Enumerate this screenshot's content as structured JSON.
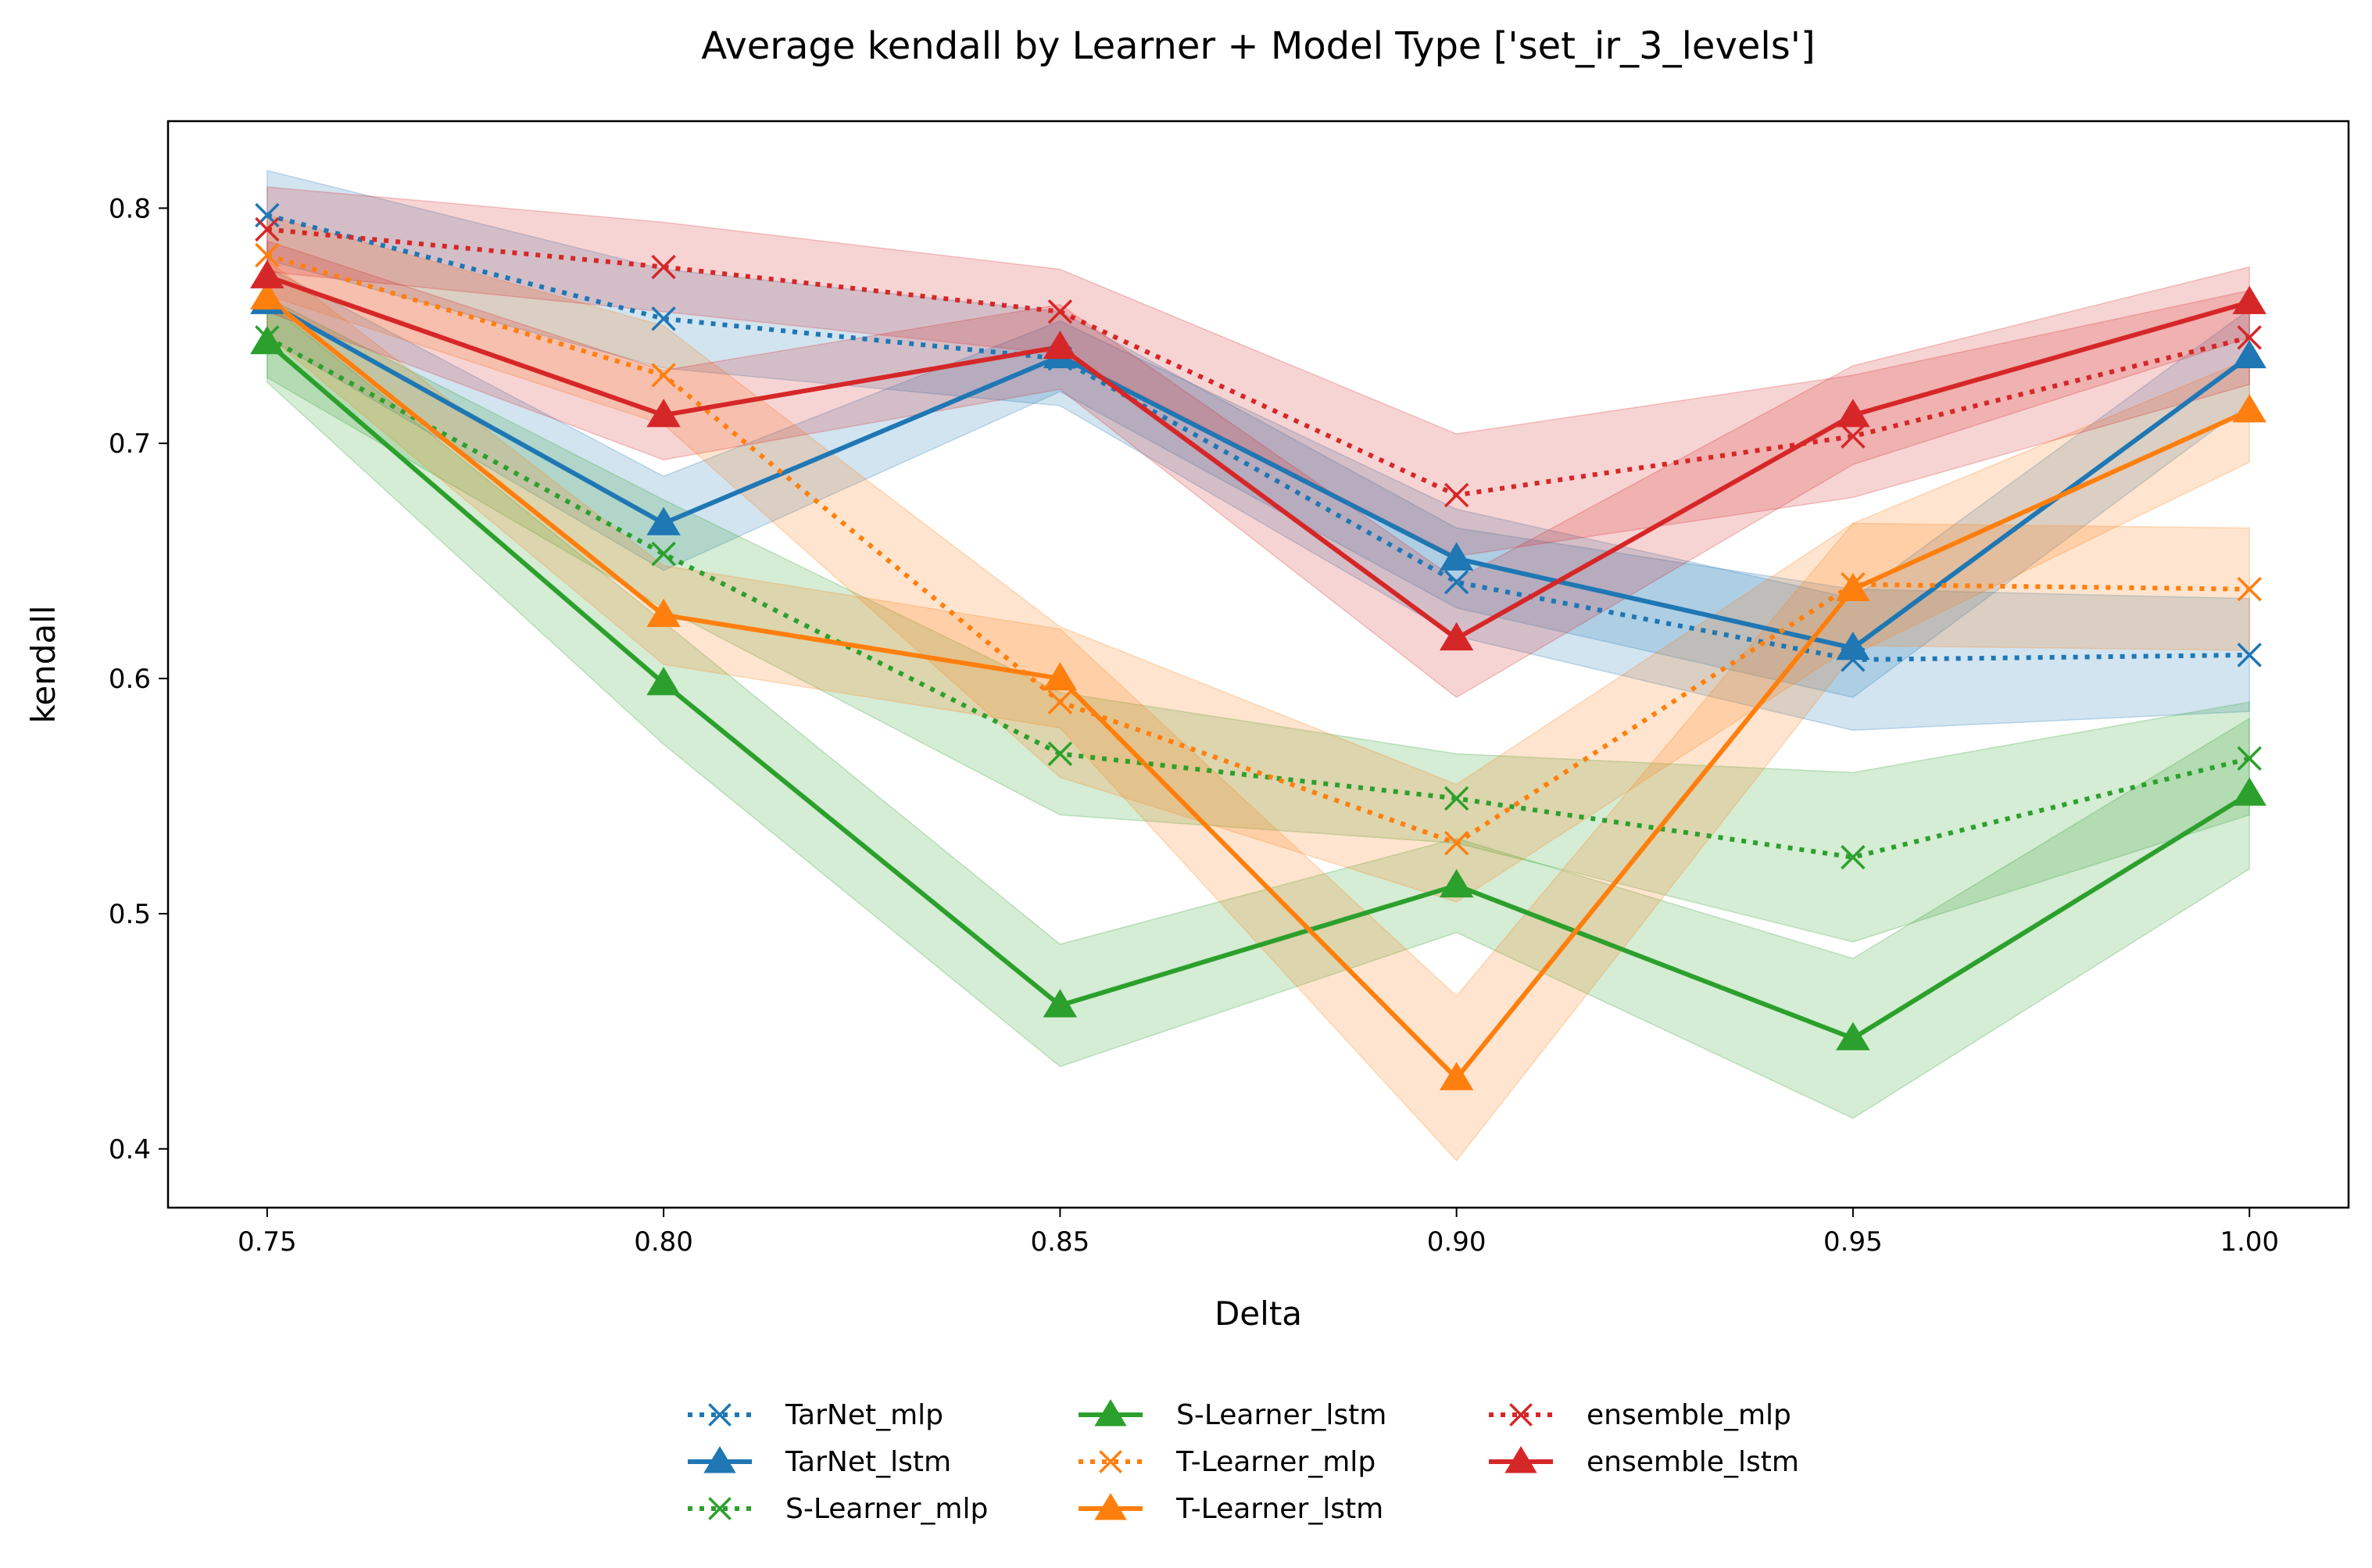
{
  "chart_data": {
    "type": "line",
    "title": "Average kendall by Learner + Model Type ['set_ir_3_levels']",
    "xlabel": "Delta",
    "ylabel": "kendall",
    "x": [
      0.75,
      0.8,
      0.85,
      0.9,
      0.95,
      1.0
    ],
    "x_tick_labels": [
      "0.75",
      "0.80",
      "0.85",
      "0.90",
      "0.95",
      "1.00"
    ],
    "y_ticks": [
      0.4,
      0.5,
      0.6,
      0.7,
      0.8
    ],
    "y_tick_labels": [
      "0.4",
      "0.5",
      "0.6",
      "0.7",
      "0.8"
    ],
    "xlim": [
      0.7375,
      1.0125
    ],
    "ylim": [
      0.375,
      0.837
    ],
    "grid": false,
    "legend_position": "bottom-center",
    "legend_columns": 3,
    "series": [
      {
        "name": "TarNet_mlp",
        "color": "#1f77b4",
        "linestyle": "dotted",
        "marker": "x",
        "values": [
          0.797,
          0.753,
          0.736,
          0.641,
          0.608,
          0.61
        ],
        "lower": [
          0.778,
          0.732,
          0.716,
          0.618,
          0.578,
          0.586
        ],
        "upper": [
          0.816,
          0.774,
          0.756,
          0.664,
          0.638,
          0.634
        ]
      },
      {
        "name": "TarNet_lstm",
        "color": "#1f77b4",
        "linestyle": "solid",
        "marker": "triangle",
        "values": [
          0.76,
          0.666,
          0.737,
          0.651,
          0.613,
          0.737
        ],
        "lower": [
          0.745,
          0.646,
          0.722,
          0.63,
          0.592,
          0.717
        ],
        "upper": [
          0.775,
          0.686,
          0.752,
          0.672,
          0.634,
          0.757
        ]
      },
      {
        "name": "S-Learner_mlp",
        "color": "#2ca02c",
        "linestyle": "dotted",
        "marker": "x",
        "values": [
          0.745,
          0.653,
          0.568,
          0.549,
          0.524,
          0.566
        ],
        "lower": [
          0.728,
          0.63,
          0.542,
          0.53,
          0.488,
          0.542
        ],
        "upper": [
          0.762,
          0.676,
          0.594,
          0.568,
          0.56,
          0.59
        ]
      },
      {
        "name": "S-Learner_lstm",
        "color": "#2ca02c",
        "linestyle": "solid",
        "marker": "triangle",
        "values": [
          0.743,
          0.598,
          0.461,
          0.512,
          0.447,
          0.551
        ],
        "lower": [
          0.726,
          0.572,
          0.435,
          0.492,
          0.413,
          0.519
        ],
        "upper": [
          0.76,
          0.624,
          0.487,
          0.532,
          0.481,
          0.583
        ]
      },
      {
        "name": "T-Learner_mlp",
        "color": "#ff7f0e",
        "linestyle": "dotted",
        "marker": "x",
        "values": [
          0.78,
          0.729,
          0.59,
          0.53,
          0.64,
          0.638
        ],
        "lower": [
          0.763,
          0.708,
          0.558,
          0.505,
          0.614,
          0.612
        ],
        "upper": [
          0.797,
          0.75,
          0.622,
          0.555,
          0.666,
          0.664
        ]
      },
      {
        "name": "T-Learner_lstm",
        "color": "#ff7f0e",
        "linestyle": "solid",
        "marker": "triangle",
        "values": [
          0.762,
          0.627,
          0.6,
          0.43,
          0.638,
          0.714
        ],
        "lower": [
          0.746,
          0.606,
          0.579,
          0.395,
          0.61,
          0.692
        ],
        "upper": [
          0.778,
          0.648,
          0.621,
          0.465,
          0.666,
          0.736
        ]
      },
      {
        "name": "ensemble_mlp",
        "color": "#d62728",
        "linestyle": "dotted",
        "marker": "x",
        "values": [
          0.791,
          0.775,
          0.756,
          0.678,
          0.703,
          0.745
        ],
        "lower": [
          0.773,
          0.756,
          0.738,
          0.652,
          0.677,
          0.725
        ],
        "upper": [
          0.809,
          0.794,
          0.774,
          0.704,
          0.729,
          0.765
        ]
      },
      {
        "name": "ensemble_lstm",
        "color": "#d62728",
        "linestyle": "solid",
        "marker": "triangle",
        "values": [
          0.771,
          0.712,
          0.741,
          0.617,
          0.712,
          0.76
        ],
        "lower": [
          0.756,
          0.693,
          0.723,
          0.592,
          0.691,
          0.745
        ],
        "upper": [
          0.786,
          0.731,
          0.759,
          0.642,
          0.733,
          0.775
        ]
      }
    ]
  }
}
